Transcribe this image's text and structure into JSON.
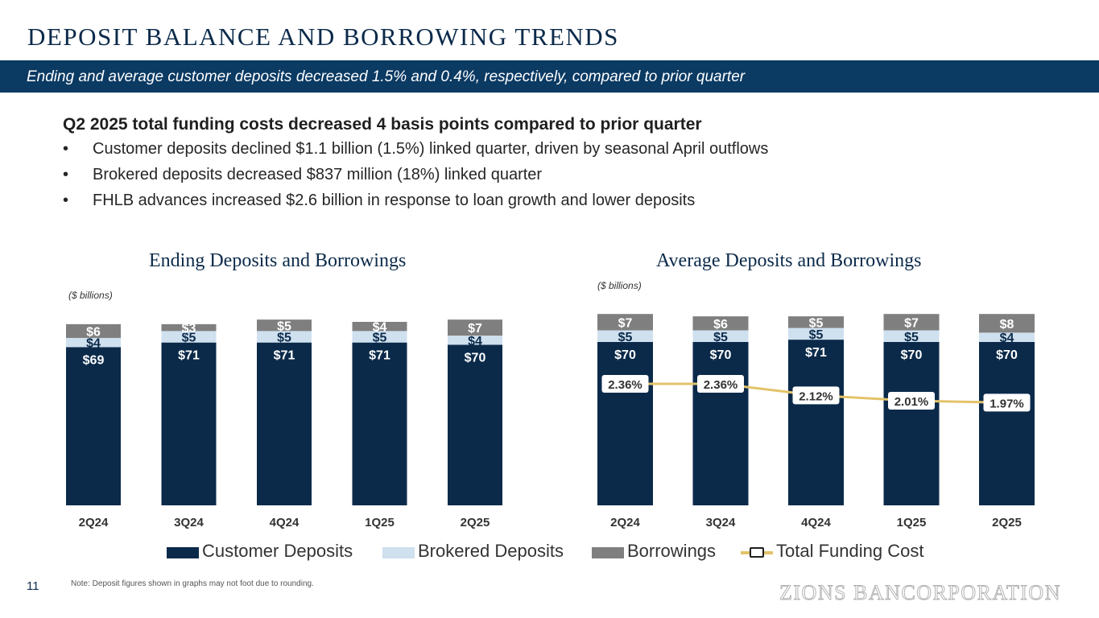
{
  "slide": {
    "title": "DEPOSIT BALANCE AND BORROWING TRENDS",
    "banner": "Ending and average customer deposits decreased 1.5% and 0.4%, respectively, compared to prior quarter",
    "headline": "Q2 2025 total funding costs decreased 4 basis points compared to prior quarter",
    "bullet_marker": "•",
    "bullets": [
      "Customer deposits declined $1.1 billion (1.5%) linked quarter, driven by seasonal April outflows",
      "Brokered deposits decreased $837 million (18%) linked quarter",
      "FHLB advances increased $2.6 billion in response to loan growth and lower deposits"
    ],
    "page_number": "11",
    "note": "Note: Deposit figures shown in graphs may not foot due to rounding.",
    "logo_text": "ZIONS BANCORPORATION"
  },
  "legend": {
    "items": [
      {
        "label": "Customer Deposits",
        "color": "#0b2a4a"
      },
      {
        "label": "Brokered Deposits",
        "color": "#cfe0ef"
      },
      {
        "label": "Borrowings",
        "color": "#7f7f7f"
      },
      {
        "label": "Total Funding Cost",
        "color": "#e3c36a"
      }
    ]
  },
  "colors": {
    "customer": "#0b2a4a",
    "brokered": "#cfe0ef",
    "borrowings": "#7f7f7f",
    "funding_line": "#e3c36a"
  },
  "chart_data": [
    {
      "type": "bar",
      "stacked": true,
      "title": "Ending Deposits and Borrowings",
      "units": "($ billions)",
      "categories": [
        "2Q24",
        "3Q24",
        "4Q24",
        "1Q25",
        "2Q25"
      ],
      "series": [
        {
          "name": "Customer Deposits",
          "values": [
            69,
            71,
            71,
            71,
            70
          ],
          "labels": [
            "$69",
            "$71",
            "$71",
            "$71",
            "$70"
          ]
        },
        {
          "name": "Brokered Deposits",
          "values": [
            4,
            5,
            5,
            5,
            4
          ],
          "labels": [
            "$4",
            "$5",
            "$5",
            "$5",
            "$4"
          ]
        },
        {
          "name": "Borrowings",
          "values": [
            6,
            3,
            5,
            4,
            7
          ],
          "labels": [
            "$6",
            "$3",
            "$5",
            "$4",
            "$7"
          ]
        }
      ],
      "legend": "bottom"
    },
    {
      "type": "bar",
      "stacked": true,
      "title": "Average Deposits and Borrowings",
      "units": "($ billions)",
      "categories": [
        "2Q24",
        "3Q24",
        "4Q24",
        "1Q25",
        "2Q25"
      ],
      "series": [
        {
          "name": "Customer Deposits",
          "values": [
            70,
            70,
            71,
            70,
            70
          ],
          "labels": [
            "$70",
            "$70",
            "$71",
            "$70",
            "$70"
          ]
        },
        {
          "name": "Brokered Deposits",
          "values": [
            5,
            5,
            5,
            5,
            4
          ],
          "labels": [
            "$5",
            "$5",
            "$5",
            "$5",
            "$4"
          ]
        },
        {
          "name": "Borrowings",
          "values": [
            7,
            6,
            5,
            7,
            8
          ],
          "labels": [
            "$7",
            "$6",
            "$5",
            "$7",
            "$8"
          ]
        }
      ],
      "line": {
        "name": "Total Funding Cost",
        "values": [
          2.36,
          2.36,
          2.12,
          2.01,
          1.97
        ],
        "labels": [
          "2.36%",
          "2.36%",
          "2.12%",
          "2.01%",
          "1.97%"
        ]
      },
      "legend": "bottom"
    }
  ]
}
